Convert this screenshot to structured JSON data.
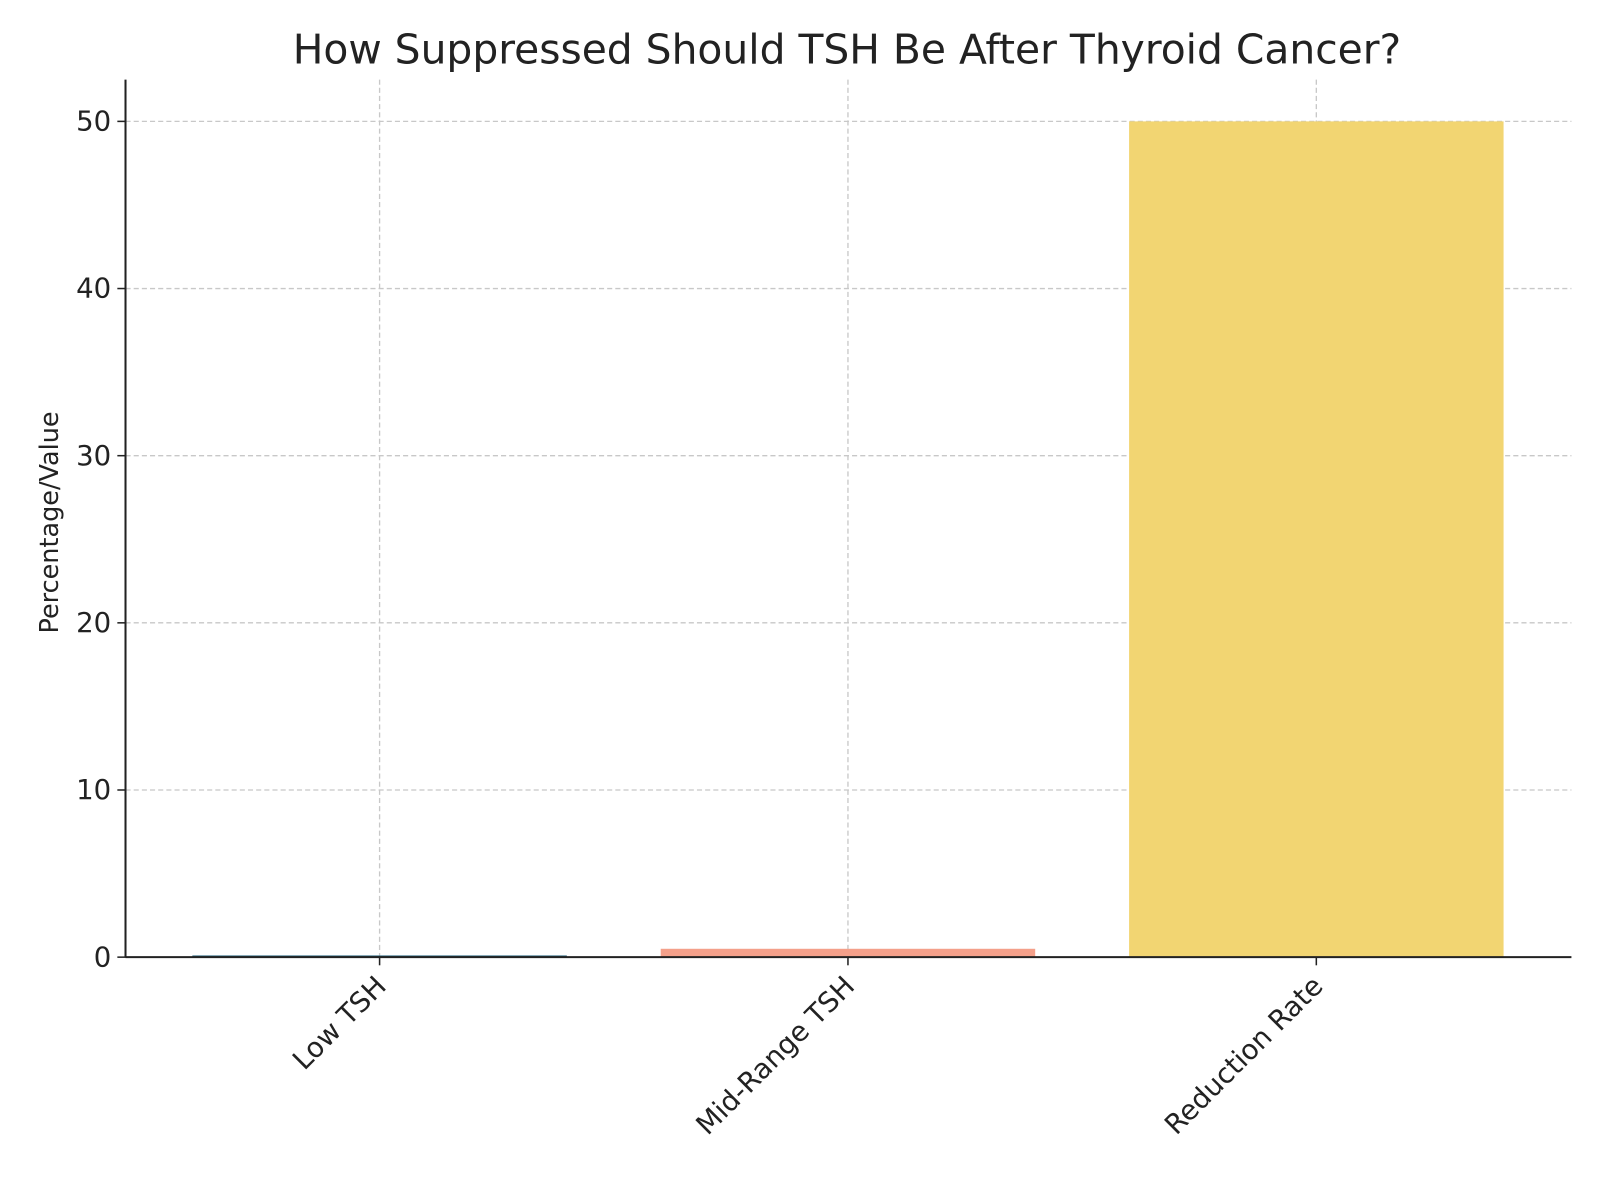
{
  "chart_data": {
    "type": "bar",
    "title": "How Suppressed Should TSH Be After Thyroid Cancer?",
    "xlabel": "",
    "ylabel": "Percentage/Value",
    "categories": [
      "Low TSH",
      "Mid-Range TSH",
      "Reduction Rate"
    ],
    "values": [
      0.1,
      0.5,
      50
    ],
    "colors": [
      "#1f5f7a",
      "#f4a08a",
      "#f2d572"
    ],
    "ylim": [
      0,
      52.5
    ],
    "yticks": [
      0,
      10,
      20,
      30,
      40,
      50
    ],
    "grid": true
  }
}
